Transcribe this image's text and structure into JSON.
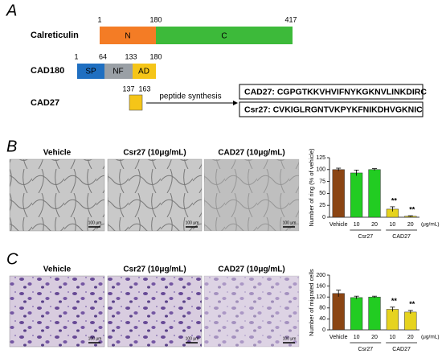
{
  "panel_a": {
    "label": "A",
    "calreticulin": {
      "name": "Calreticulin",
      "positions": [
        "1",
        "180",
        "417"
      ],
      "domains": [
        "N",
        "C"
      ]
    },
    "cad180": {
      "name": "CAD180",
      "positions": [
        "1",
        "64",
        "133",
        "180"
      ],
      "domains": [
        "SP",
        "NF",
        "AD"
      ]
    },
    "cad27": {
      "name": "CAD27",
      "positions": [
        "137",
        "163"
      ]
    },
    "arrow_label": "peptide synthesis",
    "sequences": [
      "CAD27: CGPGTKKVHVIFNYKGKNVLINKDIRC",
      "Csr27: CVKIGLRGNTVKPYKFNIKDHVGKNIC"
    ]
  },
  "panel_b": {
    "label": "B",
    "image_titles": [
      "Vehicle",
      "Csr27 (10μg/mL)",
      "CAD27 (10μg/mL)"
    ],
    "scale_bar": "100 μm"
  },
  "panel_c": {
    "label": "C",
    "image_titles": [
      "Vehicle",
      "Csr27 (10μg/mL)",
      "CAD27 (10μg/mL)"
    ],
    "scale_bar": "100 μm"
  },
  "chart_data": [
    {
      "type": "bar",
      "y_label": "Number of ring (% of vehicle)",
      "categories": [
        "Vehicle",
        "10",
        "20",
        "10",
        "20"
      ],
      "category_groups": [
        null,
        "Csr27",
        "Csr27",
        "CAD27",
        "CAD27"
      ],
      "unit": "(μg/mL)",
      "values": [
        100,
        93,
        100,
        17,
        2
      ],
      "errors": [
        3,
        6,
        2,
        5,
        1
      ],
      "value_annotations": [
        null,
        null,
        null,
        "**",
        "**"
      ],
      "colors": [
        "#8b4513",
        "#22cc22",
        "#22cc22",
        "#e6d31e",
        "#e6d31e"
      ],
      "ylim": [
        0,
        125
      ],
      "yticks": [
        0,
        25,
        50,
        75,
        100,
        125
      ]
    },
    {
      "type": "bar",
      "y_label": "Number of migrated cells",
      "categories": [
        "Vehicle",
        "10",
        "20",
        "10",
        "20"
      ],
      "category_groups": [
        null,
        "Csr27",
        "Csr27",
        "CAD27",
        "CAD27"
      ],
      "unit": "(μg/mL)",
      "values": [
        133,
        118,
        120,
        75,
        65
      ],
      "errors": [
        12,
        5,
        3,
        8,
        6
      ],
      "value_annotations": [
        null,
        null,
        null,
        "**",
        "**"
      ],
      "colors": [
        "#8b4513",
        "#22cc22",
        "#22cc22",
        "#e6d31e",
        "#e6d31e"
      ],
      "ylim": [
        0,
        200
      ],
      "yticks": [
        0,
        40,
        80,
        120,
        160,
        200
      ]
    }
  ]
}
